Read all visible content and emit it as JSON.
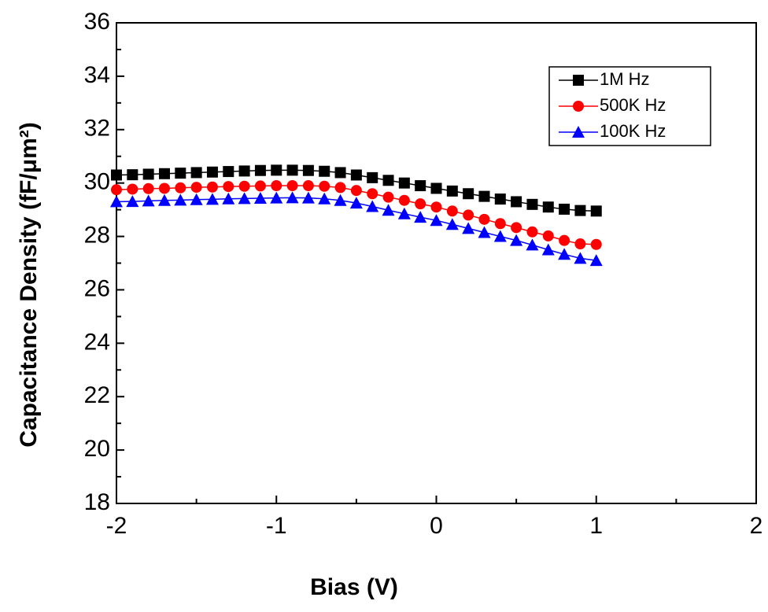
{
  "chart_data": {
    "type": "line",
    "x_label": "Bias (V)",
    "y_label": "Capacitance Density (fF/μm²)",
    "x": [
      -2,
      -1.9,
      -1.8,
      -1.7,
      -1.6,
      -1.5,
      -1.4,
      -1.3,
      -1.2,
      -1.1,
      -1,
      -0.9,
      -0.8,
      -0.7,
      -0.6,
      -0.5,
      -0.4,
      -0.3,
      -0.2,
      -0.1,
      0,
      0.1,
      0.2,
      0.3,
      0.4,
      0.5,
      0.6,
      0.7,
      0.8,
      0.9,
      1
    ],
    "series": [
      {
        "name": "1M Hz",
        "color": "#000000",
        "marker": "square",
        "values": [
          30.3,
          30.31,
          30.33,
          30.35,
          30.37,
          30.39,
          30.41,
          30.43,
          30.45,
          30.47,
          30.48,
          30.48,
          30.47,
          30.44,
          30.39,
          30.3,
          30.2,
          30.1,
          30.0,
          29.9,
          29.8,
          29.7,
          29.6,
          29.5,
          29.4,
          29.3,
          29.2,
          29.1,
          29.02,
          28.97,
          28.95
        ]
      },
      {
        "name": "500K Hz",
        "color": "#ff0000",
        "marker": "circle",
        "values": [
          29.75,
          29.77,
          29.79,
          29.8,
          29.82,
          29.84,
          29.85,
          29.87,
          29.88,
          29.89,
          29.9,
          29.9,
          29.9,
          29.88,
          29.83,
          29.72,
          29.6,
          29.47,
          29.35,
          29.22,
          29.1,
          28.95,
          28.8,
          28.64,
          28.48,
          28.33,
          28.17,
          28.02,
          27.85,
          27.72,
          27.7
        ]
      },
      {
        "name": "100K Hz",
        "color": "#0000ff",
        "marker": "triangle",
        "values": [
          29.3,
          29.31,
          29.33,
          29.35,
          29.36,
          29.38,
          29.39,
          29.41,
          29.42,
          29.43,
          29.44,
          29.45,
          29.44,
          29.41,
          29.35,
          29.25,
          29.12,
          28.98,
          28.85,
          28.72,
          28.6,
          28.45,
          28.3,
          28.15,
          28.0,
          27.85,
          27.68,
          27.5,
          27.33,
          27.18,
          27.1
        ]
      }
    ],
    "xlim": [
      -2,
      2
    ],
    "xticks": [
      -2,
      -1,
      0,
      1,
      2
    ],
    "ylim": [
      18,
      36
    ],
    "yticks": [
      18,
      20,
      22,
      24,
      26,
      28,
      30,
      32,
      34,
      36
    ],
    "legend": "top-right"
  }
}
